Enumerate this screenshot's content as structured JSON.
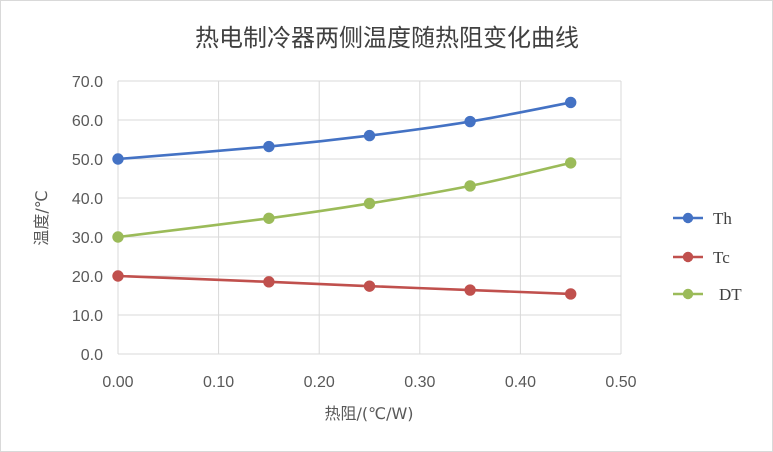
{
  "chart_data": {
    "type": "scatter",
    "title": "热电制冷器两侧温度随热阻变化曲线",
    "xlabel": "热阻/(℃/W)",
    "ylabel": "温度/℃",
    "xlim": [
      0,
      0.5
    ],
    "ylim": [
      0,
      70
    ],
    "x_ticks": [
      "0.00",
      "0.10",
      "0.20",
      "0.30",
      "0.40",
      "0.50"
    ],
    "y_ticks": [
      "0.0",
      "10.0",
      "20.0",
      "30.0",
      "40.0",
      "50.0",
      "60.0",
      "70.0"
    ],
    "grid": "vertical and horizontal",
    "legend_position": "right",
    "series": [
      {
        "name": "Th",
        "color": "#4472c4",
        "x": [
          0,
          0.15,
          0.25,
          0.35,
          0.45
        ],
        "y": [
          50.0,
          53.2,
          56.0,
          59.6,
          64.5
        ]
      },
      {
        "name": "Tc",
        "color": "#c0504d",
        "x": [
          0,
          0.15,
          0.25,
          0.35,
          0.45
        ],
        "y": [
          20.0,
          18.5,
          17.4,
          16.4,
          15.4
        ]
      },
      {
        "name": "DT",
        "color": "#9bbb59",
        "x": [
          0,
          0.15,
          0.25,
          0.35,
          0.45
        ],
        "y": [
          30.0,
          34.8,
          38.6,
          43.1,
          49.0
        ]
      }
    ]
  }
}
